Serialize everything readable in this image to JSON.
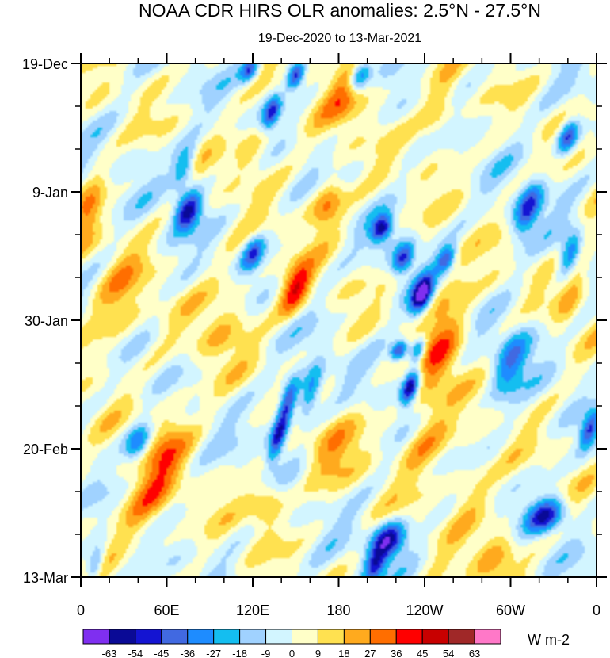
{
  "chart_data": {
    "type": "heatmap",
    "title": "NOAA CDR HIRS OLR anomalies: 2.5°N - 27.5°N",
    "subtitle": "19-Dec-2020 to 13-Mar-2021",
    "x_ticks": [
      "0",
      "60E",
      "120E",
      "180",
      "120W",
      "60W",
      "0"
    ],
    "x_range_deg": [
      0,
      360
    ],
    "y_ticks": [
      "19-Dec",
      "9-Jan",
      "30-Jan",
      "20-Feb",
      "13-Mar"
    ],
    "y_range_days": [
      0,
      84
    ],
    "colorbar": {
      "levels": [
        "-63",
        "-54",
        "-45",
        "-36",
        "-27",
        "-18",
        "-9",
        "0",
        "9",
        "18",
        "27",
        "36",
        "45",
        "54",
        "63"
      ],
      "colors": [
        "#7f2ff0",
        "#0a0a96",
        "#1414d2",
        "#4169e1",
        "#1e8cff",
        "#14bef0",
        "#a0d2ff",
        "#d2f5ff",
        "#ffffc8",
        "#ffe150",
        "#ffaa1e",
        "#ff6e00",
        "#ff0000",
        "#c80000",
        "#a02828",
        "#ff78c8"
      ],
      "units": "W m-2"
    },
    "anomaly_features": [
      {
        "lon": 75,
        "day": 24,
        "value": -58,
        "sigma_lon": 6,
        "sigma_day": 2.2
      },
      {
        "lon": 72,
        "day": 17,
        "value": -35,
        "sigma_lon": 5,
        "sigma_day": 2.5
      },
      {
        "lon": 120,
        "day": 31,
        "value": -40,
        "sigma_lon": 5,
        "sigma_day": 2
      },
      {
        "lon": 133,
        "day": 8,
        "value": -48,
        "sigma_lon": 4,
        "sigma_day": 2
      },
      {
        "lon": 150,
        "day": 2,
        "value": -55,
        "sigma_lon": 4,
        "sigma_day": 1.5
      },
      {
        "lon": 118,
        "day": 1,
        "value": -45,
        "sigma_lon": 4,
        "sigma_day": 1.5
      },
      {
        "lon": 210,
        "day": 27,
        "value": -55,
        "sigma_lon": 5,
        "sigma_day": 1.5
      },
      {
        "lon": 225,
        "day": 32,
        "value": -50,
        "sigma_lon": 5,
        "sigma_day": 1.8
      },
      {
        "lon": 238,
        "day": 38,
        "value": -70,
        "sigma_lon": 5,
        "sigma_day": 2.2
      },
      {
        "lon": 222,
        "day": 47,
        "value": -55,
        "sigma_lon": 4,
        "sigma_day": 1.2
      },
      {
        "lon": 235,
        "day": 47,
        "value": -45,
        "sigma_lon": 4,
        "sigma_day": 1.5
      },
      {
        "lon": 230,
        "day": 53,
        "value": -68,
        "sigma_lon": 4,
        "sigma_day": 2
      },
      {
        "lon": 138,
        "day": 61,
        "value": -58,
        "sigma_lon": 4,
        "sigma_day": 3
      },
      {
        "lon": 145,
        "day": 55,
        "value": -45,
        "sigma_lon": 4,
        "sigma_day": 2.5
      },
      {
        "lon": 160,
        "day": 54,
        "value": -40,
        "sigma_lon": 5,
        "sigma_day": 3
      },
      {
        "lon": 215,
        "day": 78,
        "value": -60,
        "sigma_lon": 8,
        "sigma_day": 2
      },
      {
        "lon": 205,
        "day": 82,
        "value": -45,
        "sigma_lon": 5,
        "sigma_day": 2
      },
      {
        "lon": 325,
        "day": 74,
        "value": -52,
        "sigma_lon": 9,
        "sigma_day": 2
      },
      {
        "lon": 312,
        "day": 24,
        "value": -48,
        "sigma_lon": 6,
        "sigma_day": 3
      },
      {
        "lon": 340,
        "day": 12,
        "value": -50,
        "sigma_lon": 5,
        "sigma_day": 2
      },
      {
        "lon": 342,
        "day": 31,
        "value": -45,
        "sigma_lon": 5,
        "sigma_day": 2.5
      },
      {
        "lon": 195,
        "day": 2,
        "value": -50,
        "sigma_lon": 5,
        "sigma_day": 2
      },
      {
        "lon": 255,
        "day": 32,
        "value": -40,
        "sigma_lon": 4,
        "sigma_day": 1.5
      },
      {
        "lon": 40,
        "day": 62,
        "value": -40,
        "sigma_lon": 6,
        "sigma_day": 2
      },
      {
        "lon": 355,
        "day": 60,
        "value": -40,
        "sigma_lon": 4,
        "sigma_day": 2
      },
      {
        "lon": 300,
        "day": 49,
        "value": -35,
        "sigma_lon": 8,
        "sigma_day": 4
      },
      {
        "lon": 10,
        "day": 82,
        "value": -35,
        "sigma_lon": 4,
        "sigma_day": 2
      },
      {
        "lon": 150,
        "day": 37,
        "value": 40,
        "sigma_lon": 7,
        "sigma_day": 3
      },
      {
        "lon": 172,
        "day": 23,
        "value": 32,
        "sigma_lon": 8,
        "sigma_day": 3
      },
      {
        "lon": 190,
        "day": 4,
        "value": 25,
        "sigma_lon": 12,
        "sigma_day": 5
      },
      {
        "lon": 250,
        "day": 8,
        "value": 22,
        "sigma_lon": 8,
        "sigma_day": 4
      },
      {
        "lon": 250,
        "day": 50,
        "value": 22,
        "sigma_lon": 10,
        "sigma_day": 5
      },
      {
        "lon": 255,
        "day": 42,
        "value": 18,
        "sigma_lon": 12,
        "sigma_day": 6
      },
      {
        "lon": 240,
        "day": 62,
        "value": 22,
        "sigma_lon": 12,
        "sigma_day": 4
      },
      {
        "lon": 60,
        "day": 62,
        "value": 22,
        "sigma_lon": 10,
        "sigma_day": 5
      },
      {
        "lon": 45,
        "day": 72,
        "value": 22,
        "sigma_lon": 14,
        "sigma_day": 5
      },
      {
        "lon": 130,
        "day": 72,
        "value": 24,
        "sigma_lon": 8,
        "sigma_day": 3
      },
      {
        "lon": 175,
        "day": 63,
        "value": 18,
        "sigma_lon": 12,
        "sigma_day": 5
      },
      {
        "lon": 120,
        "day": 14,
        "value": 18,
        "sigma_lon": 10,
        "sigma_day": 4
      },
      {
        "lon": 25,
        "day": 40,
        "value": 20,
        "sigma_lon": 12,
        "sigma_day": 6
      },
      {
        "lon": 5,
        "day": 25,
        "value": 22,
        "sigma_lon": 6,
        "sigma_day": 5
      },
      {
        "lon": 345,
        "day": 35,
        "value": 20,
        "sigma_lon": 6,
        "sigma_day": 6
      },
      {
        "lon": 290,
        "day": 80,
        "value": 22,
        "sigma_lon": 10,
        "sigma_day": 4
      },
      {
        "lon": 270,
        "day": 70,
        "value": 18,
        "sigma_lon": 10,
        "sigma_day": 4
      },
      {
        "lon": 100,
        "day": 42,
        "value": 16,
        "sigma_lon": 12,
        "sigma_day": 6
      }
    ]
  }
}
